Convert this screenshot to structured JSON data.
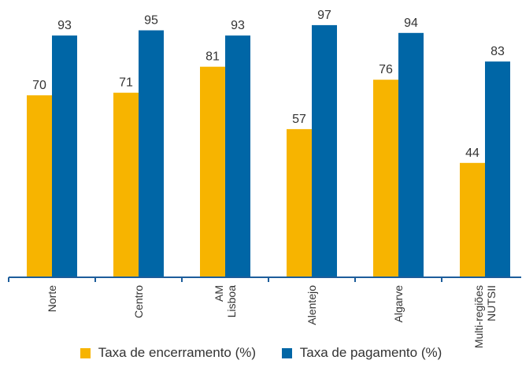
{
  "colors": {
    "series1": "#f7b400",
    "series2": "#0066a6",
    "axis": "#1d5d9b",
    "text": "#333333",
    "title": "#2a8fd0"
  },
  "chart_data": {
    "type": "bar",
    "title": "",
    "xlabel": "",
    "ylabel": "",
    "ylim": [
      0,
      100
    ],
    "grid": false,
    "legend_position": "bottom",
    "categories": [
      "Norte",
      "Centro",
      "AM\nLisboa",
      "Alentejo",
      "Algarve",
      "Multi-regiões\nNUTSII"
    ],
    "series": [
      {
        "name": "Taxa de encerramento (%)",
        "values": [
          70,
          71,
          81,
          57,
          76,
          44
        ]
      },
      {
        "name": "Taxa de pagamento (%)",
        "values": [
          93,
          95,
          93,
          97,
          94,
          83
        ]
      }
    ]
  }
}
